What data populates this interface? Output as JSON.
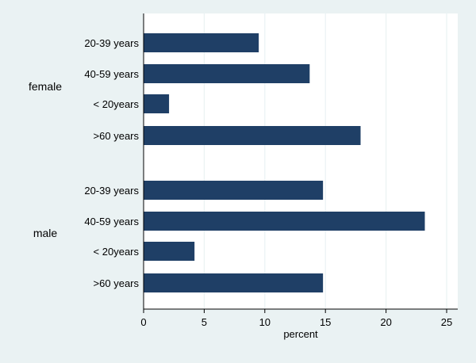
{
  "chart_data": {
    "type": "bar",
    "orientation": "horizontal",
    "xlabel": "percent",
    "xlim": [
      0,
      25
    ],
    "xticks": [
      0,
      5,
      10,
      15,
      20,
      25
    ],
    "grid": true,
    "bar_color": "#1f3f66",
    "background_color": "#eaf2f3",
    "plot_background_color": "#ffffff",
    "groups": [
      {
        "name": "female",
        "categories": [
          "20-39 years",
          "40-59 years",
          "< 20years",
          ">60 years"
        ],
        "values": [
          9.5,
          13.7,
          2.1,
          17.9
        ]
      },
      {
        "name": "male",
        "categories": [
          "20-39 years",
          "40-59 years",
          "< 20years",
          ">60 years"
        ],
        "values": [
          14.8,
          23.2,
          4.2,
          14.8
        ]
      }
    ]
  }
}
